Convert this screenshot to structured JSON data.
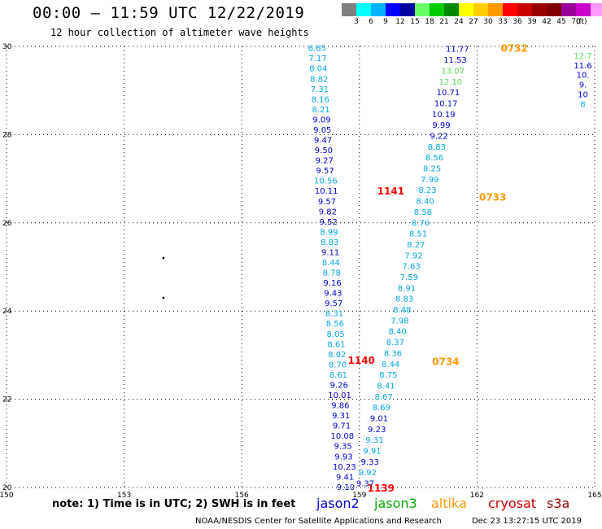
{
  "header": {
    "title": "00:00 – 11:59 UTC 12/22/2019",
    "subtitle": "12 hour collection of altimeter wave heights"
  },
  "legend": {
    "unit": "(ft)",
    "colors": [
      "#808080",
      "#00ffff",
      "#00b4ff",
      "#0000ff",
      "#0000a0",
      "#66ff66",
      "#00cc00",
      "#008800",
      "#ffff00",
      "#ffcc00",
      "#ff9900",
      "#ff0000",
      "#cc0000",
      "#990000",
      "#800000",
      "#990099",
      "#cc00cc",
      "#ff99ff",
      "#000000"
    ],
    "labels": [
      "3",
      "6",
      "9",
      "12",
      "15",
      "18",
      "21",
      "24",
      "27",
      "30",
      "33",
      "36",
      "39",
      "42",
      "45",
      "70"
    ]
  },
  "axes": {
    "lon_labels": [
      "150",
      "153",
      "156",
      "159",
      "162",
      "165"
    ],
    "lat_labels": [
      "30",
      "28",
      "26",
      "24",
      "22",
      "20"
    ],
    "lon_range": [
      150,
      165
    ],
    "lat_range": [
      20,
      30
    ]
  },
  "chart_data": {
    "type": "scatter",
    "xlabel": "",
    "ylabel": "",
    "xlim": [
      150,
      165
    ],
    "ylim": [
      20,
      30
    ],
    "grid": true,
    "palette": {
      "dark": "#0000cc",
      "light": "#00a8e0",
      "green": "#55dd55"
    },
    "tracks": [
      {
        "satellite": "jason2",
        "start": {
          "lon": 157.92,
          "lat": 29.97
        },
        "end": {
          "lon": 158.65,
          "lat": 20.02
        },
        "values": [
          "6.65",
          "7.17",
          "8.04",
          "8.82",
          "7.31",
          "8.16",
          "8.21",
          "9.09",
          "9.05",
          "9.47",
          "9.50",
          "9.27",
          "9.57",
          "10.56",
          "10.11",
          "9.57",
          "9.82",
          "9.52",
          "8.99",
          "8.83",
          "9.11",
          "8.44",
          "8.78",
          "9.16",
          "9.43",
          "9.57",
          "8.31",
          "8.56",
          "8.05",
          "8.61",
          "8.02",
          "8.70",
          "8.61",
          "9.26",
          "10.01",
          "9.86",
          "9.31",
          "9.71",
          "10.08",
          "9.35",
          "9.93",
          "10.23",
          "9.41",
          "9.10"
        ],
        "colors": [
          "l",
          "l",
          "l",
          "l",
          "l",
          "l",
          "l",
          "d",
          "d",
          "d",
          "d",
          "d",
          "d",
          "l",
          "d",
          "d",
          "d",
          "d",
          "l",
          "l",
          "d",
          "l",
          "l",
          "d",
          "d",
          "d",
          "l",
          "l",
          "l",
          "l",
          "l",
          "l",
          "l",
          "d",
          "d",
          "d",
          "d",
          "d",
          "d",
          "d",
          "d",
          "d",
          "d",
          "d"
        ],
        "time_labels": [
          {
            "text": "1141",
            "lon": 159.8,
            "lat": 26.73,
            "color": "#ff0000"
          },
          {
            "text": "1140",
            "lon": 159.05,
            "lat": 22.9,
            "color": "#ff0000"
          },
          {
            "text": "1139",
            "lon": 159.55,
            "lat": 20.0,
            "color": "#ff0000"
          }
        ]
      },
      {
        "satellite": "jason3",
        "start": {
          "lon": 161.5,
          "lat": 29.95
        },
        "end": {
          "lon": 159.15,
          "lat": 20.1
        },
        "values": [
          "11.77",
          "11.53",
          "13.07",
          "12.10",
          "10.71",
          "10.17",
          "10.19",
          "9.99",
          "9.22",
          "8.83",
          "8.56",
          "8.25",
          "7.99",
          "8.23",
          "8.40",
          "8.58",
          "8.70",
          "8.51",
          "8.27",
          "7.92",
          "7.63",
          "7.59",
          "8.91",
          "8.83",
          "8.48",
          "7.98",
          "8.40",
          "8.37",
          "8.36",
          "8.44",
          "8.75",
          "8.41",
          "8.67",
          "8.69",
          "9.01",
          "9.23",
          "9.31",
          "9.91",
          "9.33",
          "9.92",
          "9.37"
        ],
        "colors": [
          "d",
          "d",
          "g",
          "g",
          "d",
          "d",
          "d",
          "d",
          "d",
          "l",
          "l",
          "l",
          "l",
          "l",
          "l",
          "l",
          "l",
          "l",
          "l",
          "l",
          "l",
          "l",
          "l",
          "l",
          "l",
          "l",
          "l",
          "l",
          "l",
          "l",
          "l",
          "l",
          "l",
          "l",
          "d",
          "d",
          "l",
          "l",
          "d",
          "l",
          "d"
        ],
        "time_labels": [
          {
            "text": "0733",
            "lon": 162.4,
            "lat": 26.6,
            "color": "#ff9900"
          },
          {
            "text": "0734",
            "lon": 161.2,
            "lat": 22.87,
            "color": "#ff9900"
          },
          {
            "text": "0732",
            "lon": 162.95,
            "lat": 29.97,
            "color": "#ff9900"
          }
        ]
      },
      {
        "satellite": "partial-track-edge",
        "start": {
          "lon": 164.7,
          "lat": 29.8
        },
        "end": {
          "lon": 164.7,
          "lat": 28.7
        },
        "values": [
          "12.7",
          "11.6",
          "10.",
          "9.",
          "10",
          "8"
        ],
        "colors": [
          "g",
          "d",
          "d",
          "d",
          "d",
          "l"
        ],
        "time_labels": []
      }
    ],
    "markers": [
      {
        "lon": 154.0,
        "lat": 25.2
      },
      {
        "lon": 154.0,
        "lat": 24.3
      }
    ]
  },
  "footer": {
    "note": "note:  1) Time is in UTC;  2) SWH is in feet",
    "satellites": [
      {
        "name": "jason2",
        "color": "#0000cc"
      },
      {
        "name": "jason3",
        "color": "#00aa00"
      },
      {
        "name": "altika",
        "color": "#ff9900"
      },
      {
        "name": "cryosat",
        "color": "#cc0000"
      },
      {
        "name": "s3a",
        "color": "#990000"
      }
    ],
    "credit": "NOAA/NESDIS Center for Satellite Applications and Research",
    "timestamp": "Dec 23 13:27:15 UTC 2019"
  }
}
